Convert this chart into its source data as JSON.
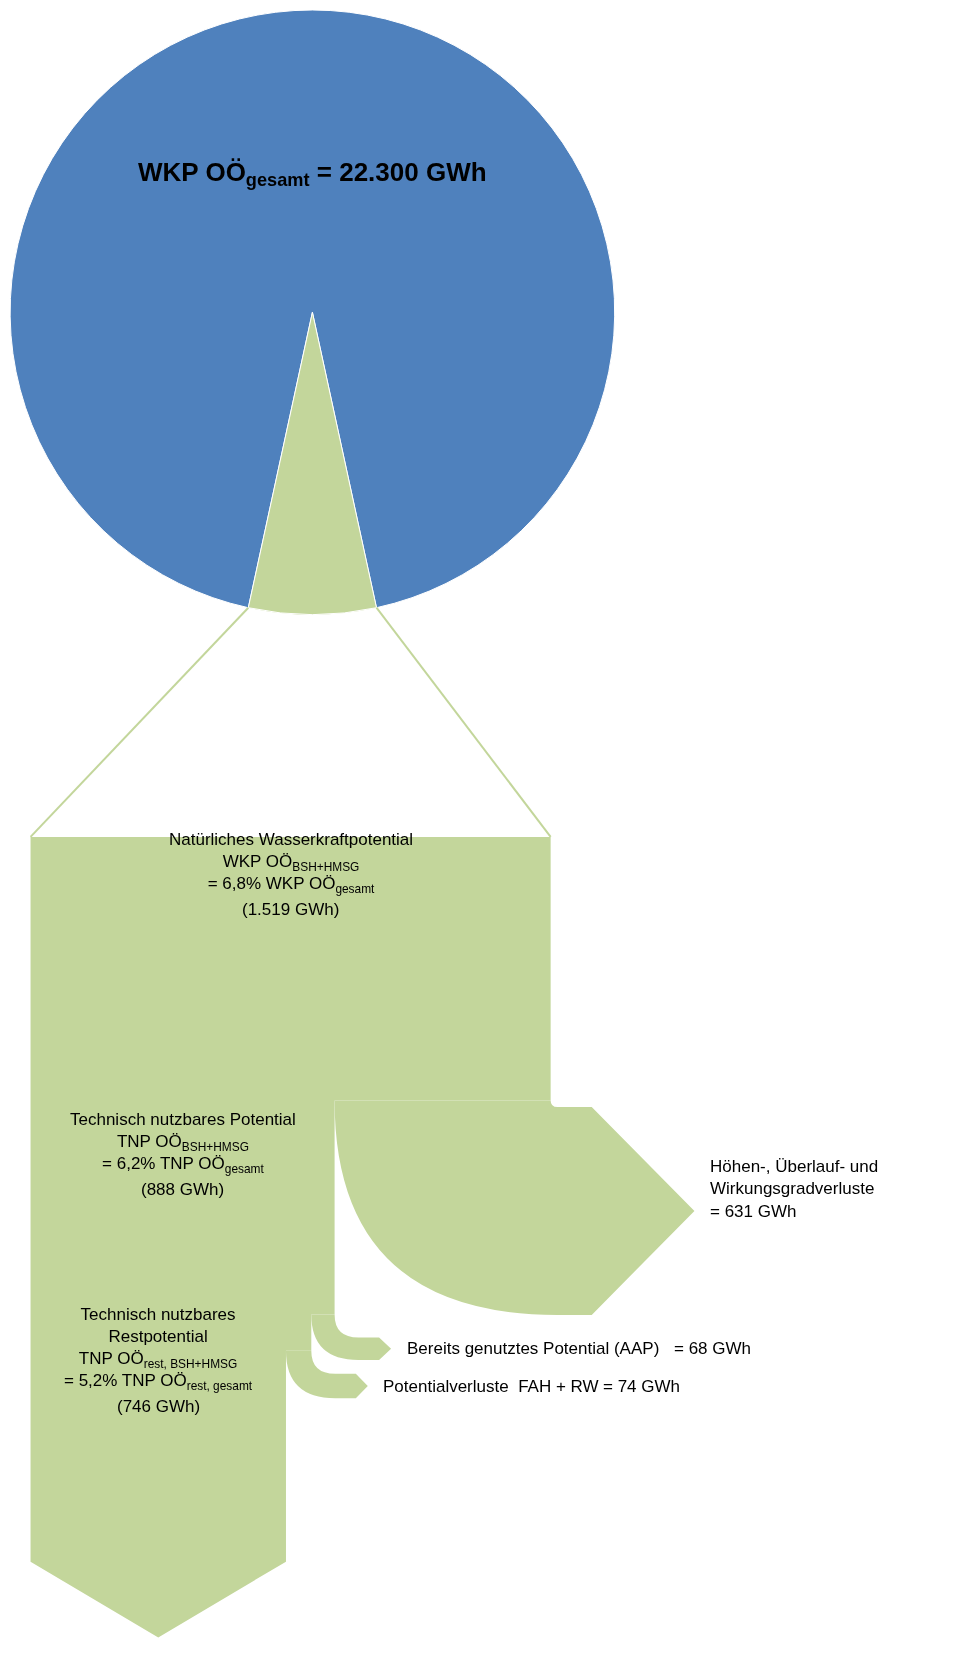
{
  "chart_data": [
    {
      "type": "pie",
      "title": "WKP OÖ$_{gesamt}$ = 22.300 GWh",
      "categories": [
        null,
        null
      ],
      "values": [
        93.2,
        6.8
      ],
      "colors": [
        "#4f81bd",
        "#c3d69b"
      ]
    },
    {
      "type": "other",
      "categories": [
        "Natürliches Wasserkraftpotential\nWKP OÖ$_{BSH+HMSG}$\n= 6,8% WKP OÖ$_{gesamt}$",
        "Technisch nutzbares Potential\nTNP OÖ$_{BSH+HMSG}$\n= 6,2% TNP OÖ$_{gesamt}$",
        "Höhen-, Überlauf- und\nWirkungsgradverluste",
        "Technisch nutzbares\nRestpotential\nTNP OÖ$_{rest, BSH+HMSG}$\n= 5,2% TNP OÖ$_{rest, gesamt}$",
        "Bereits genutztes Potential (AAP)",
        "Potentialverluste  FAH + RW"
      ],
      "values": [
        1519,
        888,
        631,
        746,
        68,
        74
      ],
      "value_labels": [
        "(1.519 GWh)",
        "(888 GWh)",
        "= 631 GWh",
        "(746 GWh)",
        "= 68 GWh",
        "= 74 GWh"
      ],
      "color": "#c3d69b"
    }
  ]
}
